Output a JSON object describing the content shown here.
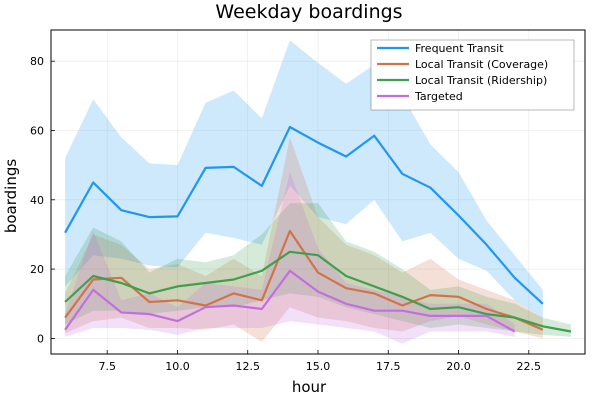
{
  "chart_data": {
    "type": "line",
    "title": "Weekday boardings",
    "xlabel": "hour",
    "ylabel": "boardings",
    "xlim": [
      5.5,
      24.5
    ],
    "ylim": [
      -4.5,
      89
    ],
    "xticks": [
      7.5,
      10.0,
      12.5,
      15.0,
      17.5,
      20.0,
      22.5
    ],
    "xtick_labels": [
      "7.5",
      "10.0",
      "12.5",
      "15.0",
      "17.5",
      "20.0",
      "22.5"
    ],
    "yticks": [
      0,
      20,
      40,
      60,
      80
    ],
    "ytick_labels": [
      "0",
      "20",
      "40",
      "60",
      "80"
    ],
    "grid": true,
    "legend_position": "top-right",
    "series": [
      {
        "name": "Frequent Transit",
        "color": "#1f97f0",
        "x": [
          6,
          7,
          8,
          9,
          10,
          11,
          12,
          13,
          14,
          15,
          16,
          17,
          18,
          19,
          20,
          21,
          22,
          23
        ],
        "values": [
          30.5,
          45,
          37,
          35,
          35.2,
          49.2,
          49.5,
          44,
          61,
          56.5,
          52.5,
          58.5,
          47.5,
          43.5,
          35.5,
          27,
          17.5,
          10
        ],
        "upper": [
          52,
          69,
          58,
          50.5,
          50,
          68,
          71.5,
          63.5,
          86,
          79.5,
          73.5,
          79,
          70,
          56,
          48,
          34,
          24,
          14
        ],
        "lower": [
          15,
          24,
          23,
          21,
          20.5,
          30.5,
          29,
          27,
          44,
          35,
          33,
          40,
          28,
          30.5,
          23,
          19.5,
          11,
          6
        ]
      },
      {
        "name": "Local Transit (Coverage)",
        "color": "#d0734a",
        "x": [
          6,
          7,
          8,
          9,
          10,
          11,
          12,
          13,
          14,
          15,
          16,
          17,
          18,
          19,
          20,
          21,
          22,
          23
        ],
        "values": [
          6,
          17,
          17.5,
          10.5,
          11,
          9.5,
          13,
          11,
          31,
          19,
          14.5,
          13,
          9.5,
          12.5,
          12,
          8.5,
          6,
          2.5
        ],
        "upper": [
          13,
          30,
          27,
          20,
          21.5,
          18,
          23,
          18,
          58,
          35,
          27,
          24,
          19,
          23,
          17,
          14,
          11,
          6
        ],
        "lower": [
          1.5,
          5,
          6,
          3,
          3,
          2.5,
          4,
          -1,
          9,
          6,
          5,
          3,
          2,
          5,
          6.5,
          4,
          2,
          0
        ]
      },
      {
        "name": "Local Transit (Ridership)",
        "color": "#3e9f4d",
        "x": [
          6,
          7,
          8,
          9,
          10,
          11,
          12,
          13,
          14,
          15,
          16,
          17,
          18,
          19,
          20,
          21,
          22,
          23,
          24
        ],
        "values": [
          10.5,
          18,
          16,
          13,
          15,
          16,
          17,
          19.5,
          25,
          24,
          18,
          15,
          12,
          8.5,
          9,
          7,
          6,
          3.5,
          2
        ],
        "upper": [
          18,
          32,
          28,
          19,
          23,
          22,
          24,
          30,
          39,
          39,
          28,
          25,
          20,
          14,
          15,
          12,
          10,
          6,
          4
        ],
        "lower": [
          4,
          8,
          8,
          7,
          8,
          9,
          9,
          11,
          13,
          12,
          9,
          7,
          5,
          3,
          4,
          3,
          2,
          1,
          0.5
        ]
      },
      {
        "name": "Targeted",
        "color": "#c36ee0",
        "x": [
          6,
          7,
          8,
          9,
          10,
          11,
          12,
          13,
          14,
          15,
          16,
          17,
          18,
          19,
          20,
          21,
          22
        ],
        "values": [
          2.5,
          14,
          7.5,
          7,
          5,
          9,
          9.5,
          8.5,
          19.5,
          13.5,
          10,
          8,
          8,
          6.5,
          6.5,
          6.5,
          2
        ],
        "upper": [
          7,
          31,
          11,
          13,
          9,
          16,
          15,
          14,
          48,
          26,
          16,
          14,
          12,
          10,
          10,
          10,
          4
        ],
        "lower": [
          0.5,
          3,
          3,
          2.5,
          1,
          3,
          3,
          3,
          5,
          4,
          3,
          2,
          -1.5,
          2,
          2,
          2,
          0.5
        ]
      }
    ]
  }
}
